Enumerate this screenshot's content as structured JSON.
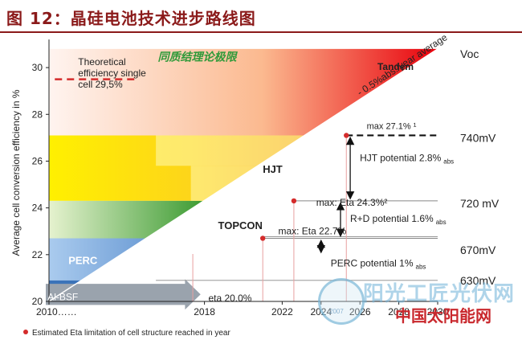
{
  "page": {
    "title": "图 12：晶硅电池技术进步路线图"
  },
  "chart_data": {
    "type": "area",
    "ylabel": "Average cell conversion efficiency in %",
    "xlim": [
      2010,
      2030
    ],
    "ylim": [
      20,
      31
    ],
    "x_ticks": [
      {
        "value": 2010,
        "label": "2010……"
      },
      {
        "value": 2018,
        "label": "2018"
      },
      {
        "value": 2022,
        "label": "2022"
      },
      {
        "value": 2024,
        "label": "2024"
      },
      {
        "value": 2026,
        "label": "2026"
      },
      {
        "value": 2028,
        "label": "2028"
      },
      {
        "value": 2030,
        "label": "2030"
      }
    ],
    "y_ticks": [
      20,
      22,
      24,
      26,
      28,
      30
    ],
    "right_axis": {
      "title": "Voc",
      "labels": [
        {
          "label": "740mV",
          "y": 27
        },
        {
          "label": "720 mV",
          "y": 24.2
        },
        {
          "label": "670mV",
          "y": 22.2
        },
        {
          "label": "630mV",
          "y": 20.9
        }
      ]
    },
    "trend_line": {
      "label": "0.5%abs./year average",
      "points": [
        {
          "x": 2010,
          "y": 20
        },
        {
          "x": 2030,
          "y": 30.8
        }
      ]
    },
    "theoretical_limit": {
      "value": 29.5,
      "label": [
        "Theoretical",
        "efficiency single",
        "cell 29,5%"
      ],
      "cn_label": "同质结理论极限"
    },
    "technologies": [
      {
        "name": "Al-BSF",
        "start_year": 2010,
        "efficiency": 20.0
      },
      {
        "name": "PERC",
        "start_year": 2010,
        "efficiency": 22.7
      },
      {
        "name": "TOPCON",
        "start_year": 2010,
        "efficiency": 24.3
      },
      {
        "name": "HJT",
        "start_year": 2010,
        "efficiency": 27.1
      },
      {
        "name": "Tandem",
        "start_year": 2010,
        "efficiency": 30.8
      }
    ],
    "milestones": [
      {
        "x": 2021,
        "y": 22.7,
        "label": "max: Eta 22.7%"
      },
      {
        "x": 2022.6,
        "y": 24.3,
        "label": "max: Eta 24.3%²"
      },
      {
        "x": 2025.3,
        "y": 27.1,
        "label": "max 27.1% ¹"
      }
    ],
    "annotations": {
      "al_bsf": "eta 20.0%",
      "potentials": [
        {
          "label": "HJT potential  2.8%",
          "sub": "abs"
        },
        {
          "label": "R+D potential 1.6%",
          "sub": "abs"
        },
        {
          "label": "PERC potential 1%",
          "sub": "abs"
        }
      ]
    },
    "legend_note": "Estimated Eta limitation of cell structure reached in year",
    "colors": {
      "perc": "#6f9ed6",
      "topcon_start": "#e6f2cf",
      "topcon_end": "#3c9b32",
      "hjt_start": "#fff000",
      "hjt_end": "#f6a31c",
      "tandem_start": "#fff4f0",
      "tandem_end": "#e8000c",
      "milestone": "#d42b2b",
      "title": "#8b1a1a",
      "watermark": "#c9282d"
    }
  },
  "watermark": {
    "site": "阳光工匠光伏网",
    "site2": "中国太阳能网",
    "year": "2007"
  }
}
